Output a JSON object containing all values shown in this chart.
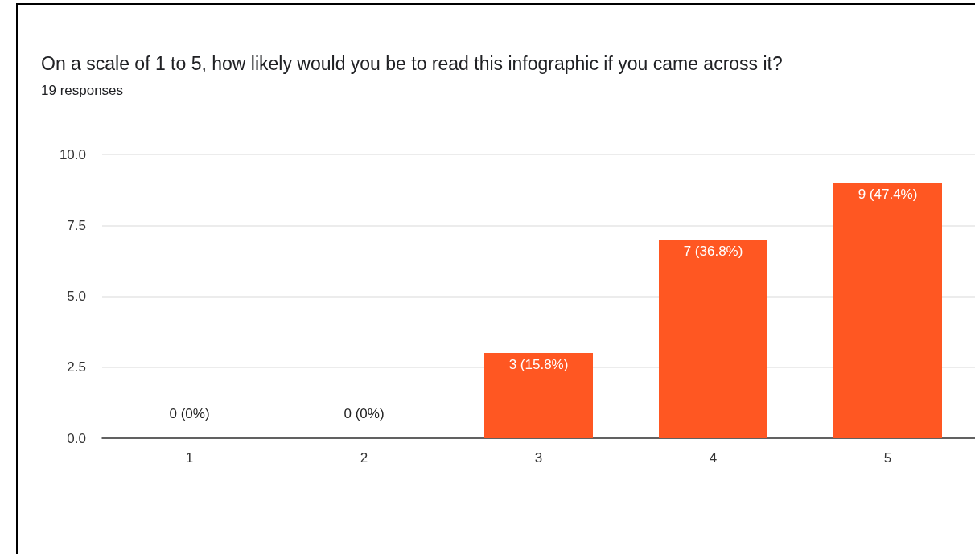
{
  "chart_data": {
    "type": "bar",
    "title": "On a scale of 1 to 5, how likely would you be to read this infographic if you came across it?",
    "subtitle": "19 responses",
    "categories": [
      "1",
      "2",
      "3",
      "4",
      "5"
    ],
    "values": [
      0,
      0,
      3,
      7,
      9
    ],
    "value_labels": [
      "0 (0%)",
      "0 (0%)",
      "3 (15.8%)",
      "7 (36.8%)",
      "9 (47.4%)"
    ],
    "color": "#ff5722",
    "ylim": [
      0,
      10
    ],
    "yticks": [
      {
        "value": 0,
        "label": "0.0"
      },
      {
        "value": 2.5,
        "label": "2.5"
      },
      {
        "value": 5,
        "label": "5.0"
      },
      {
        "value": 7.5,
        "label": "7.5"
      },
      {
        "value": 10,
        "label": "10.0"
      }
    ],
    "grid": "y"
  }
}
